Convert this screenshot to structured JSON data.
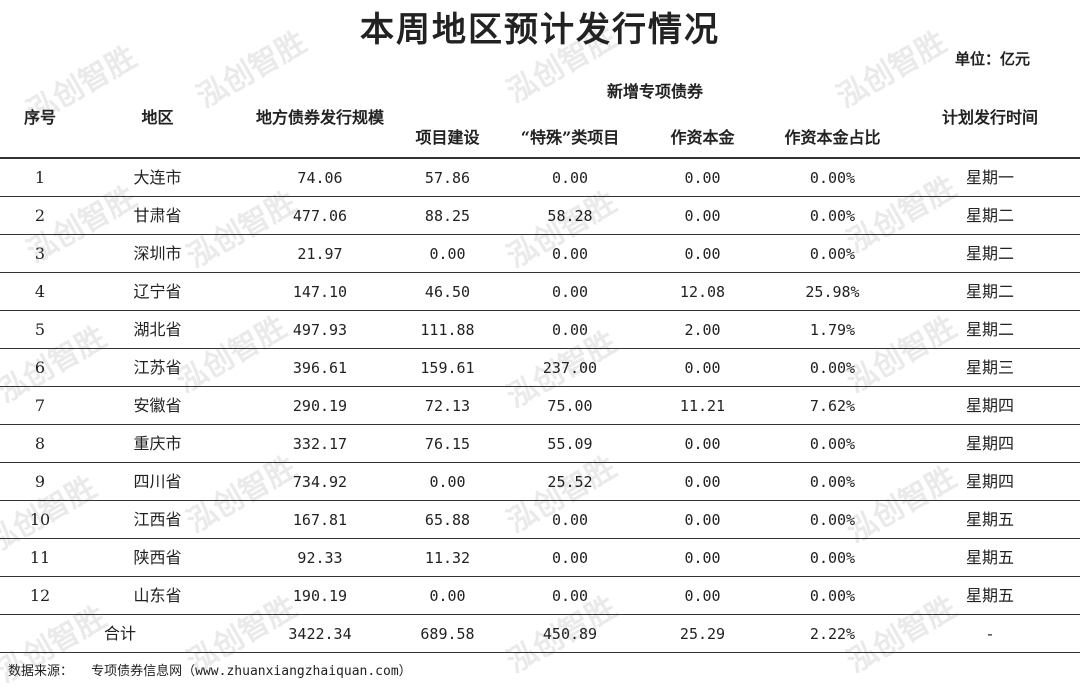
{
  "title": "本周地区预计发行情况",
  "unit": "单位：亿元",
  "headers": {
    "seq": "序号",
    "region": "地区",
    "total": "地方债券发行规模",
    "group": "新增专项债券",
    "project": "项目建设",
    "special": "“特殊”类项目",
    "capital": "作资本金",
    "capital_ratio": "作资本金占比",
    "schedule": "计划发行时间"
  },
  "rows": [
    {
      "seq": "1",
      "region": "大连市",
      "total": "74.06",
      "project": "57.86",
      "special": "0.00",
      "capital": "0.00",
      "ratio": "0.00%",
      "day": "星期一"
    },
    {
      "seq": "2",
      "region": "甘肃省",
      "total": "477.06",
      "project": "88.25",
      "special": "58.28",
      "capital": "0.00",
      "ratio": "0.00%",
      "day": "星期二"
    },
    {
      "seq": "3",
      "region": "深圳市",
      "total": "21.97",
      "project": "0.00",
      "special": "0.00",
      "capital": "0.00",
      "ratio": "0.00%",
      "day": "星期二"
    },
    {
      "seq": "4",
      "region": "辽宁省",
      "total": "147.10",
      "project": "46.50",
      "special": "0.00",
      "capital": "12.08",
      "ratio": "25.98%",
      "day": "星期二"
    },
    {
      "seq": "5",
      "region": "湖北省",
      "total": "497.93",
      "project": "111.88",
      "special": "0.00",
      "capital": "2.00",
      "ratio": "1.79%",
      "day": "星期二"
    },
    {
      "seq": "6",
      "region": "江苏省",
      "total": "396.61",
      "project": "159.61",
      "special": "237.00",
      "capital": "0.00",
      "ratio": "0.00%",
      "day": "星期三"
    },
    {
      "seq": "7",
      "region": "安徽省",
      "total": "290.19",
      "project": "72.13",
      "special": "75.00",
      "capital": "11.21",
      "ratio": "7.62%",
      "day": "星期四"
    },
    {
      "seq": "8",
      "region": "重庆市",
      "total": "332.17",
      "project": "76.15",
      "special": "55.09",
      "capital": "0.00",
      "ratio": "0.00%",
      "day": "星期四"
    },
    {
      "seq": "9",
      "region": "四川省",
      "total": "734.92",
      "project": "0.00",
      "special": "25.52",
      "capital": "0.00",
      "ratio": "0.00%",
      "day": "星期四"
    },
    {
      "seq": "10",
      "region": "江西省",
      "total": "167.81",
      "project": "65.88",
      "special": "0.00",
      "capital": "0.00",
      "ratio": "0.00%",
      "day": "星期五"
    },
    {
      "seq": "11",
      "region": "陕西省",
      "total": "92.33",
      "project": "11.32",
      "special": "0.00",
      "capital": "0.00",
      "ratio": "0.00%",
      "day": "星期五"
    },
    {
      "seq": "12",
      "region": "山东省",
      "total": "190.19",
      "project": "0.00",
      "special": "0.00",
      "capital": "0.00",
      "ratio": "0.00%",
      "day": "星期五"
    }
  ],
  "total_row": {
    "label": "合计",
    "total": "3422.34",
    "project": "689.58",
    "special": "450.89",
    "capital": "25.29",
    "ratio": "2.22%",
    "day": "-"
  },
  "footer": {
    "label": "数据来源：",
    "source": "专项债券信息网（www.zhuanxiangzhaiquan.com）"
  },
  "watermark": "泓创智胜",
  "colors": {
    "text": "#222222",
    "rule": "#333333",
    "watermark": "#b4b4b4"
  }
}
